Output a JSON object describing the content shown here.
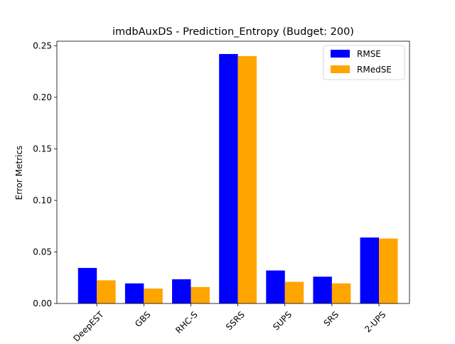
{
  "chart_data": {
    "type": "bar",
    "title": "imdbAuxDS - Prediction_Entropy (Budget: 200)",
    "xlabel": "",
    "ylabel": "Error Metrics",
    "categories": [
      "DeepEST",
      "GBS",
      "RHC-S",
      "SSRS",
      "SUPS",
      "SRS",
      "2-UPS"
    ],
    "series": [
      {
        "name": "RMSE",
        "color": "#0000ff",
        "values": [
          0.0345,
          0.0195,
          0.0235,
          0.242,
          0.032,
          0.026,
          0.064
        ]
      },
      {
        "name": "RMedSE",
        "color": "#ffa500",
        "values": [
          0.0225,
          0.0145,
          0.016,
          0.24,
          0.021,
          0.0195,
          0.063
        ]
      }
    ],
    "ylim": [
      0,
      0.2544
    ],
    "yticks": [
      "0.00",
      "0.05",
      "0.10",
      "0.15",
      "0.20",
      "0.25"
    ],
    "ytick_values": [
      0,
      0.05,
      0.1,
      0.15,
      0.2,
      0.25
    ],
    "xtick_rotation": 45,
    "grid": false,
    "legend_position": "top-right"
  }
}
